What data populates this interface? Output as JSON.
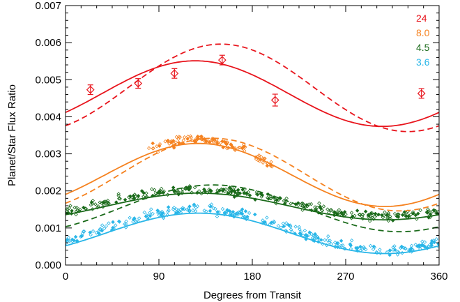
{
  "chart_data": {
    "type": "scatter",
    "xlabel": "Degrees from Transit",
    "ylabel": "Planet/Star Flux Ratio",
    "xlim": [
      0,
      360
    ],
    "ylim": [
      0.0,
      0.007
    ],
    "xticks": [
      0,
      90,
      180,
      270,
      360
    ],
    "xtick_labels": [
      "0",
      "90",
      "180",
      "270",
      "360"
    ],
    "yticks": [
      0.0,
      0.001,
      0.002,
      0.003,
      0.004,
      0.005,
      0.006,
      0.007
    ],
    "ytick_labels": [
      "0.000",
      "0.001",
      "0.002",
      "0.003",
      "0.004",
      "0.005",
      "0.006",
      "0.007"
    ],
    "grid": false,
    "legend_position": "top-right",
    "series": [
      {
        "name": "24",
        "color": "#e8141c",
        "points": [
          {
            "x": 24,
            "y": 0.00473,
            "err": 0.00013
          },
          {
            "x": 70,
            "y": 0.0049,
            "err": 0.00013
          },
          {
            "x": 105,
            "y": 0.00517,
            "err": 0.00013
          },
          {
            "x": 151,
            "y": 0.00553,
            "err": 0.00013
          },
          {
            "x": 202,
            "y": 0.00445,
            "err": 0.00016
          },
          {
            "x": 343,
            "y": 0.00463,
            "err": 0.00013
          }
        ],
        "model_solid": {
          "mean": 0.004625,
          "amplitude": 0.000885,
          "peak_x": 125
        },
        "model_dashed": {
          "mean": 0.00478,
          "amplitude": 0.00118,
          "peak_x": 150
        },
        "scatter_windows": []
      },
      {
        "name": "8.0",
        "color": "#f58220",
        "points": [],
        "model_solid": {
          "mean": 0.00243,
          "amplitude": 0.00085,
          "peak_x": 128
        },
        "model_dashed": {
          "mean": 0.00244,
          "amplitude": 0.00098,
          "peak_x": 142
        },
        "scatter_windows": [
          {
            "from": 80,
            "to": 174,
            "count": 90,
            "offset": 0.0001,
            "spread": 0.00013
          },
          {
            "from": 183,
            "to": 202,
            "count": 20,
            "offset": 0.0,
            "spread": 0.00012
          }
        ]
      },
      {
        "name": "4.5",
        "color": "#1a6a1a",
        "points": [],
        "model_solid": {
          "mean": 0.00158,
          "amplitude": 0.00036,
          "peak_x": 128
        },
        "model_dashed": {
          "mean": 0.00153,
          "amplitude": 0.00063,
          "peak_x": 142
        },
        "scatter_windows": [
          {
            "from": 0,
            "to": 178,
            "count": 150,
            "offset": 0.0001,
            "spread": 0.00012
          },
          {
            "from": 182,
            "to": 360,
            "count": 150,
            "offset": 0.0001,
            "spread": 0.00012
          }
        ]
      },
      {
        "name": "3.6",
        "color": "#29b6e8",
        "points": [],
        "model_solid": {
          "mean": 0.000855,
          "amplitude": 0.000545,
          "peak_x": 128
        },
        "model_dashed": null,
        "scatter_windows": [
          {
            "from": 0,
            "to": 178,
            "count": 150,
            "offset": 0.0001,
            "spread": 0.00013
          },
          {
            "from": 182,
            "to": 360,
            "count": 150,
            "offset": 0.0001,
            "spread": 0.00013
          }
        ]
      }
    ]
  }
}
